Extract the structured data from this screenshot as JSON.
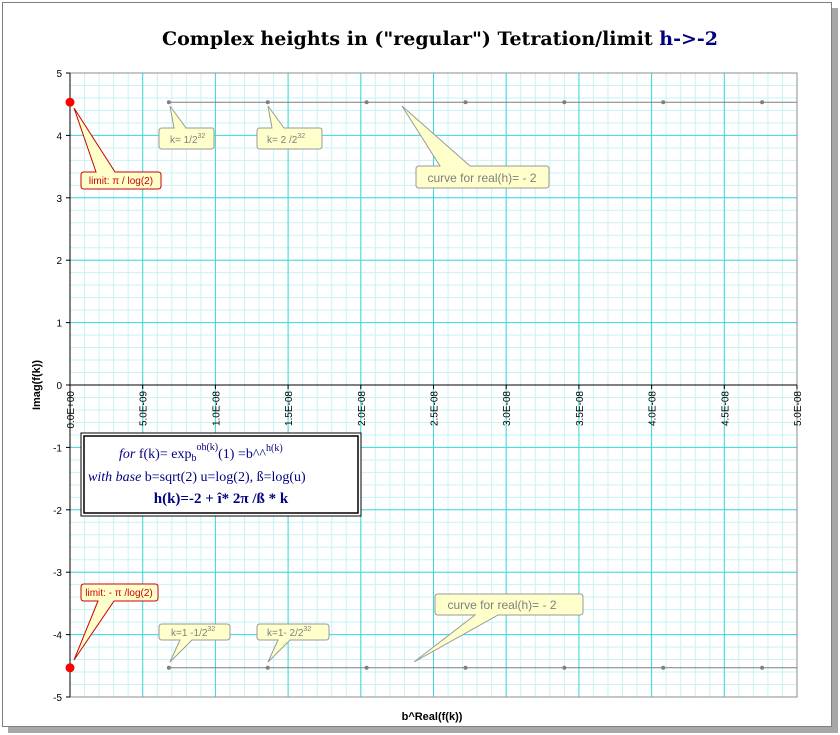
{
  "chart_data": {
    "type": "scatter",
    "title": "Complex heights in (\"regular\") Tetration/limit",
    "title_accent": "h->-2",
    "xlabel": "b^Real(f(k))",
    "ylabel": "Imag(f(k))",
    "xlim": [
      0,
      5e-08
    ],
    "ylim": [
      -5,
      5
    ],
    "x_ticks": [
      "0.0E+00",
      "5.0E-09",
      "1.0E-08",
      "1.5E-08",
      "2.0E-08",
      "2.5E-08",
      "3.0E-08",
      "3.5E-08",
      "4.0E-08",
      "4.5E-08",
      "5.0E-08"
    ],
    "y_ticks": [
      "5",
      "4",
      "3",
      "2",
      "1",
      "0",
      "-1",
      "-2",
      "-3",
      "-4",
      "-5"
    ],
    "grid": true,
    "series": [
      {
        "color": "#7f7f7f",
        "x": [
          6.8e-09,
          1.36e-08,
          2.04e-08,
          2.72e-08,
          3.4e-08,
          4.08e-08,
          4.76e-08
        ],
        "y": [
          4.532,
          4.532,
          4.532,
          4.532,
          4.532,
          4.532,
          4.532
        ],
        "line_to_x": 5e-08
      },
      {
        "color": "#7f7f7f",
        "x": [
          6.8e-09,
          1.36e-08,
          2.04e-08,
          2.72e-08,
          3.4e-08,
          4.08e-08,
          4.76e-08
        ],
        "y": [
          -4.532,
          -4.532,
          -4.532,
          -4.532,
          -4.532,
          -4.532,
          -4.532
        ],
        "line_to_x": 5e-08
      },
      {
        "color": "#ff0000",
        "x": [
          0,
          0
        ],
        "y": [
          4.532,
          -4.532
        ]
      }
    ],
    "annotations": {
      "k_top_1": {
        "base": "k= 1/2",
        "sup": "32"
      },
      "k_top_2": {
        "base": "k= 2 /2",
        "sup": "32"
      },
      "curve_top": "curve for real(h)= - 2",
      "limit_top": "limit:  π / log(2)",
      "limit_bottom": "limit:  - π /log(2)",
      "curve_bottom": "curve for real(h)= - 2",
      "k_bot_1": {
        "base": "k=1 -1/2",
        "sup": "32"
      },
      "k_bot_2": {
        "base": "k=1- 2/2",
        "sup": "32"
      }
    },
    "info_box": {
      "line1_it": "for",
      "line1_a": " f(k)= exp",
      "line1_sub": "b",
      "line1_sup1": "oh(k)",
      "line1_b": "(1) =b^^",
      "line1_sup2": "h(k)",
      "line2_it": "with base",
      "line2_rest": " b=sqrt(2)  u=log(2), ß=log(u)",
      "line3": "h(k)=-2 + î* 2π /ß * k"
    },
    "colors": {
      "grid_major": "#3cd8d8",
      "grid_minor": "#c8f3f3",
      "series": "#7f7f7f",
      "limit_point": "#ff0000",
      "callout_fill": "#ffffcc",
      "title_accent": "#000080"
    }
  }
}
